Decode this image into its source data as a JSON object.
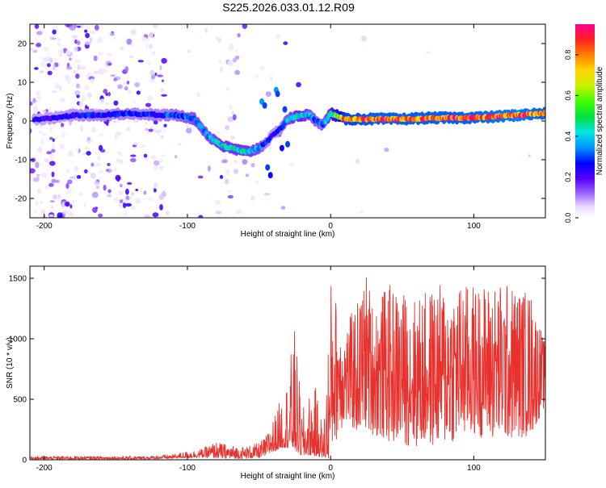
{
  "figure": {
    "title": "S225.2026.033.01.12.R09"
  },
  "chart_data": [
    {
      "type": "heatmap",
      "name": "spectrogram",
      "xlabel": "Height of straight line (km)",
      "ylabel": "Frequency (Hz)",
      "xlim": [
        -210,
        150
      ],
      "ylim": [
        -25,
        25
      ],
      "xticks": [
        -200,
        -100,
        0,
        100
      ],
      "yticks": [
        -20,
        -10,
        0,
        10,
        20
      ],
      "colorbar": {
        "label": "Normalized spectral amplitude",
        "range": [
          0,
          0.95
        ],
        "ticks": [
          "0.0",
          "0.2",
          "0.4",
          "0.6",
          "0.8"
        ],
        "tick_values": [
          0,
          0.2,
          0.4,
          0.6,
          0.8
        ]
      },
      "ridge": {
        "x": [
          -200,
          -180,
          -160,
          -140,
          -120,
          -105,
          -95,
          -85,
          -75,
          -65,
          -58,
          -50,
          -45,
          -40,
          -35,
          -30,
          -25,
          -20,
          -15,
          -10,
          -5,
          0,
          10,
          30,
          50,
          70,
          90,
          110,
          130,
          150
        ],
        "freq": [
          0.5,
          1.5,
          1.5,
          2,
          1.5,
          1.5,
          0.5,
          -4,
          -6.5,
          -7.5,
          -8,
          -7,
          -5.5,
          -3.5,
          -2,
          0.5,
          1,
          1.5,
          1.5,
          0,
          -1,
          2,
          0.5,
          0.5,
          0.5,
          0.8,
          0.8,
          1,
          1.5,
          2
        ],
        "amplitude": [
          0.25,
          0.28,
          0.3,
          0.3,
          0.3,
          0.35,
          0.4,
          0.4,
          0.45,
          0.45,
          0.45,
          0.4,
          0.3,
          0.25,
          0.3,
          0.4,
          0.45,
          0.5,
          0.4,
          0.35,
          0.35,
          0.5,
          0.85,
          0.9,
          0.9,
          0.9,
          0.9,
          0.92,
          0.95,
          0.9
        ]
      }
    },
    {
      "type": "line",
      "name": "snr",
      "xlabel": "Height of straight line (km)",
      "ylabel": "SNR (10 * v/v)",
      "xlim": [
        -210,
        150
      ],
      "ylim": [
        0,
        1600
      ],
      "xticks": [
        -200,
        -100,
        0,
        100
      ],
      "yticks": [
        0,
        500,
        1000,
        1500
      ],
      "color": "#e8312c",
      "envelope": {
        "x": [
          -210,
          -130,
          -110,
          -100,
          -90,
          -80,
          -70,
          -60,
          -50,
          -45,
          -40,
          -35,
          -30,
          -25,
          -20,
          -15,
          -10,
          -5,
          0,
          5,
          10,
          20,
          25,
          30,
          40,
          60,
          80,
          100,
          120,
          140,
          150
        ],
        "low": [
          5,
          5,
          10,
          15,
          20,
          15,
          10,
          10,
          15,
          30,
          60,
          100,
          100,
          80,
          30,
          40,
          30,
          20,
          10,
          200,
          300,
          200,
          250,
          200,
          150,
          100,
          120,
          200,
          150,
          200,
          450
        ],
        "high": [
          30,
          30,
          45,
          70,
          90,
          150,
          120,
          110,
          140,
          200,
          350,
          500,
          700,
          1100,
          400,
          550,
          600,
          250,
          1500,
          1300,
          1100,
          1350,
          1560,
          1300,
          1450,
          1350,
          1480,
          1450,
          1480,
          1400,
          950
        ]
      }
    }
  ]
}
